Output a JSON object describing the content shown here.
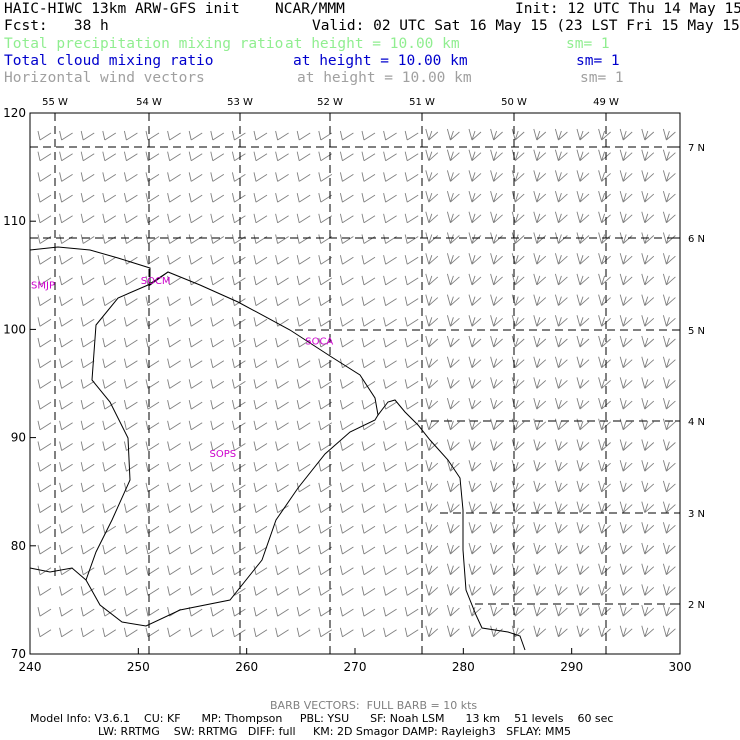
{
  "header": {
    "title": "HAIC-HIWC 13km ARW-GFS init",
    "center": "NCAR/MMM",
    "init": "Init: 12 UTC Thu 14 May 15",
    "fcst": "Fcst:   38 h",
    "valid": "Valid: 02 UTC Sat 16 May 15 (23 LST Fri 15 May 15)",
    "fields": [
      {
        "name": "Total precipitation mixing ratio",
        "level": "at height = 10.00 km",
        "sm": "sm= 1",
        "color": "#90ee90"
      },
      {
        "name": "Total cloud mixing ratio",
        "level": "at height = 10.00 km",
        "sm": "sm= 1",
        "color": "#0000cd"
      },
      {
        "name": "Horizontal wind vectors",
        "level": "at height = 10.00 km",
        "sm": "sm= 1",
        "color": "#a0a0a0"
      }
    ]
  },
  "map": {
    "x_range": [
      240,
      300
    ],
    "y_range": [
      70,
      120
    ],
    "x_ticks": [
      "240",
      "250",
      "260",
      "270",
      "280",
      "290",
      "300"
    ],
    "y_ticks": [
      "70",
      "80",
      "90",
      "100",
      "110",
      "120"
    ],
    "lon_labels": [
      "55 W",
      "54 W",
      "53 W",
      "52 W",
      "51 W",
      "50 W",
      "49 W"
    ],
    "lat_labels": [
      "7 N",
      "6 N",
      "5 N",
      "4 N",
      "3 N",
      "2 N"
    ],
    "stations": [
      {
        "id": "SMJP",
        "x": 241.2,
        "y": 103.8
      },
      {
        "id": "SOCM",
        "x": 251.6,
        "y": 104.2
      },
      {
        "id": "SOCA",
        "x": 266.7,
        "y": 98.6
      },
      {
        "id": "SOPS",
        "x": 257.8,
        "y": 88.2
      }
    ],
    "station_color": "#cc00cc",
    "coastline_color": "#000000",
    "wind_barb_color": "#808080"
  },
  "footer": {
    "barb_note": "BARB VECTORS:  FULL BARB = 10 kts",
    "model_line_1": "Model Info: V3.6.1    CU: KF      MP: Thompson     PBL: YSU      SF: Noah LSM      13 km    51 levels    60 sec",
    "model_line_2": "LW: RRTMG    SW: RRTMG   DIFF: full     KM: 2D Smagor DAMP: Rayleigh3   SFLAY: MM5"
  }
}
